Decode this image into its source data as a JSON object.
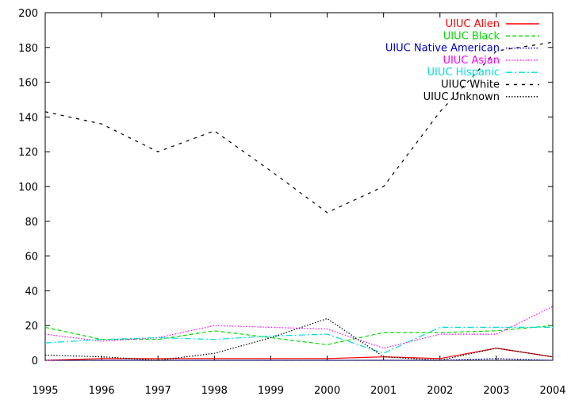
{
  "chart_data": {
    "type": "line",
    "title": "",
    "xlabel": "",
    "ylabel": "",
    "x": [
      1995,
      1996,
      1997,
      1998,
      1999,
      2000,
      2001,
      2002,
      2003,
      2004
    ],
    "xlim": [
      1995,
      2004
    ],
    "ylim": [
      0,
      200
    ],
    "xticks": [
      "1995",
      "1996",
      "1997",
      "1998",
      "1999",
      "2000",
      "2001",
      "2002",
      "2003",
      "2004"
    ],
    "yticks": [
      "0",
      "20",
      "40",
      "60",
      "80",
      "100",
      "120",
      "140",
      "160",
      "180",
      "200"
    ],
    "grid": false,
    "legend_position": "top-right",
    "series": [
      {
        "name": "UIUC Alien",
        "color": "#ff0000",
        "dash": "solid",
        "values": [
          0,
          1,
          1,
          1,
          1,
          1,
          2,
          1,
          7,
          2
        ]
      },
      {
        "name": "UIUC Black",
        "color": "#00dd00",
        "dash": "dashed",
        "values": [
          19,
          12,
          12,
          17,
          13,
          9,
          16,
          16,
          17,
          20
        ]
      },
      {
        "name": "UIUC Native American",
        "color": "#0000cc",
        "dash": "dotted",
        "values": [
          0,
          0,
          0,
          0,
          0,
          0,
          0,
          0,
          1,
          0
        ]
      },
      {
        "name": "UIUC Asian",
        "color": "#ff00ff",
        "dash": "dotted",
        "values": [
          15,
          11,
          13,
          20,
          19,
          18,
          7,
          15,
          15,
          31
        ]
      },
      {
        "name": "UIUC Hispanic",
        "color": "#00dddd",
        "dash": "dashdot",
        "values": [
          10,
          12,
          13,
          12,
          14,
          15,
          4,
          19,
          19,
          19
        ]
      },
      {
        "name": "UIUC White",
        "color": "#000000",
        "dash": "widedash",
        "values": [
          143,
          136,
          120,
          132,
          109,
          85,
          100,
          143,
          178,
          183
        ]
      },
      {
        "name": "UIUC Unknown",
        "color": "#000000",
        "dash": "dotted",
        "values": [
          3,
          2,
          0,
          4,
          13,
          24,
          2,
          0,
          7,
          2
        ]
      }
    ]
  }
}
